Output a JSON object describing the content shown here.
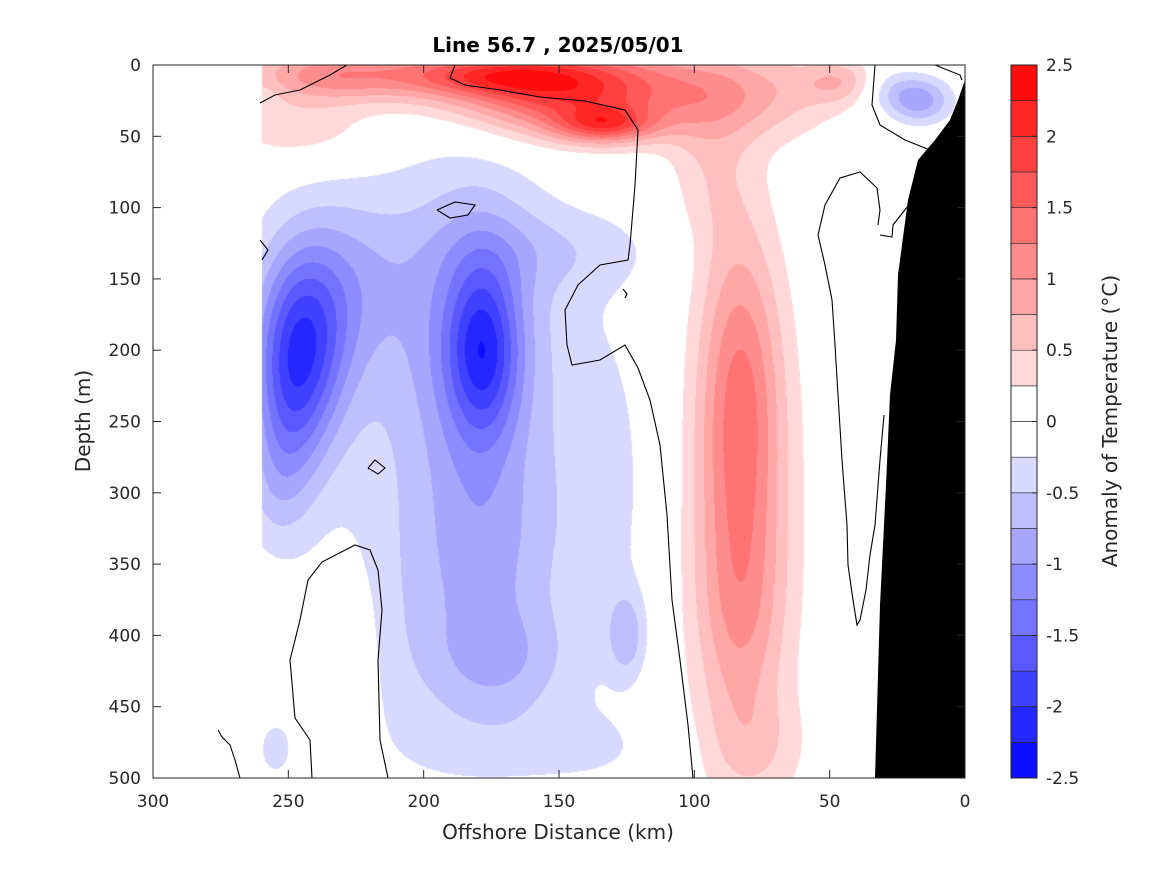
{
  "chart_data": {
    "type": "contour",
    "title": "Line 56.7 , 2025/05/01",
    "xlabel": "Offshore Distance (km)",
    "ylabel": "Depth (m)",
    "xlim": [
      0,
      300
    ],
    "x_direction": "reversed",
    "ylim": [
      0,
      500
    ],
    "y_direction": "reversed",
    "x_ticks": [
      300,
      250,
      200,
      150,
      100,
      50,
      0
    ],
    "y_ticks": [
      0,
      50,
      100,
      150,
      200,
      250,
      300,
      350,
      400,
      450,
      500
    ],
    "colorbar": {
      "label": "Anomaly of Temperature (°C)",
      "range": [
        -2.5,
        2.5
      ],
      "ticks": [
        -2.5,
        -2,
        -1.5,
        -1,
        -0.5,
        0,
        0.5,
        1,
        1.5,
        2,
        2.5
      ],
      "tick_labels": [
        "-2.5",
        "-2",
        "-1.5",
        "-1",
        "-0.5",
        "0",
        "0.5",
        "1",
        "1.5",
        "2",
        "2.5"
      ],
      "level_step": 0.25,
      "white_band": [
        -0.25,
        0.25
      ]
    },
    "data_extent_km": [
      0,
      260
    ],
    "blobs": [
      {
        "x": 200,
        "y": 5,
        "v": 0.9,
        "rx": 70,
        "ry": 22
      },
      {
        "x": 150,
        "y": 20,
        "v": 1.5,
        "rx": 40,
        "ry": 30
      },
      {
        "x": 133,
        "y": 42,
        "v": 1.2,
        "rx": 18,
        "ry": 12
      },
      {
        "x": 175,
        "y": 8,
        "v": 0.7,
        "rx": 30,
        "ry": 12
      },
      {
        "x": 245,
        "y": 45,
        "v": 0.45,
        "rx": 28,
        "ry": 25
      },
      {
        "x": 235,
        "y": 8,
        "v": 0.5,
        "rx": 25,
        "ry": 16
      },
      {
        "x": 110,
        "y": 20,
        "v": 0.55,
        "rx": 45,
        "ry": 30
      },
      {
        "x": 75,
        "y": 20,
        "v": 0.4,
        "rx": 30,
        "ry": 35
      },
      {
        "x": 45,
        "y": 12,
        "v": 0.6,
        "rx": 15,
        "ry": 15
      },
      {
        "x": 95,
        "y": 70,
        "v": 0.35,
        "rx": 15,
        "ry": 60
      },
      {
        "x": 83,
        "y": 230,
        "v": 1.0,
        "rx": 15,
        "ry": 120
      },
      {
        "x": 83,
        "y": 320,
        "v": 0.55,
        "rx": 22,
        "ry": 160
      },
      {
        "x": 83,
        "y": 390,
        "v": 0.5,
        "rx": 16,
        "ry": 80
      },
      {
        "x": 78,
        "y": 480,
        "v": 0.35,
        "rx": 20,
        "ry": 40
      },
      {
        "x": 228,
        "y": 410,
        "v": 0.35,
        "rx": 10,
        "ry": 60
      },
      {
        "x": 258,
        "y": 20,
        "v": -0.1,
        "rx": 6,
        "ry": 12
      },
      {
        "x": 17,
        "y": 25,
        "v": -0.9,
        "rx": 12,
        "ry": 16
      },
      {
        "x": 30,
        "y": 15,
        "v": -0.4,
        "rx": 12,
        "ry": 15
      },
      {
        "x": 245,
        "y": 195,
        "v": -1.5,
        "rx": 17,
        "ry": 65
      },
      {
        "x": 230,
        "y": 150,
        "v": -0.5,
        "rx": 25,
        "ry": 60
      },
      {
        "x": 250,
        "y": 250,
        "v": -0.7,
        "rx": 14,
        "ry": 60
      },
      {
        "x": 255,
        "y": 300,
        "v": -0.3,
        "rx": 12,
        "ry": 45
      },
      {
        "x": 178,
        "y": 200,
        "v": -1.2,
        "rx": 13,
        "ry": 60
      },
      {
        "x": 180,
        "y": 190,
        "v": -0.7,
        "rx": 25,
        "ry": 110
      },
      {
        "x": 175,
        "y": 340,
        "v": -0.5,
        "rx": 25,
        "ry": 80
      },
      {
        "x": 170,
        "y": 420,
        "v": -0.45,
        "rx": 25,
        "ry": 40
      },
      {
        "x": 200,
        "y": 200,
        "v": -0.4,
        "rx": 50,
        "ry": 140
      },
      {
        "x": 200,
        "y": 400,
        "v": -0.35,
        "rx": 40,
        "ry": 110
      },
      {
        "x": 133,
        "y": 300,
        "v": -0.3,
        "rx": 22,
        "ry": 140
      },
      {
        "x": 125,
        "y": 400,
        "v": -0.55,
        "rx": 7,
        "ry": 30
      },
      {
        "x": 150,
        "y": 480,
        "v": -0.25,
        "rx": 45,
        "ry": 30
      },
      {
        "x": 255,
        "y": 480,
        "v": -0.3,
        "rx": 8,
        "ry": 25
      },
      {
        "x": 150,
        "y": 130,
        "v": -0.3,
        "rx": 40,
        "ry": 30
      }
    ],
    "zero_contours": [
      [
        [
          260,
          103
        ],
        [
          275,
          95
        ],
        [
          300,
          90
        ],
        [
          330,
          75
        ],
        [
          352,
          62
        ],
        [
          370,
          54
        ],
        [
          392,
          50
        ],
        [
          415,
          45
        ],
        [
          440,
          48
        ],
        [
          455,
          65
        ],
        [
          450,
          78
        ],
        [
          465,
          85
        ],
        [
          500,
          90
        ],
        [
          540,
          97
        ],
        [
          585,
          101
        ],
        [
          625,
          110
        ],
        [
          638,
          130
        ],
        [
          635,
          185
        ],
        [
          630,
          245
        ],
        [
          628,
          260
        ],
        [
          600,
          265
        ],
        [
          578,
          285
        ],
        [
          565,
          310
        ],
        [
          567,
          345
        ],
        [
          572,
          365
        ],
        [
          600,
          360
        ],
        [
          625,
          345
        ],
        [
          638,
          368
        ],
        [
          650,
          400
        ],
        [
          660,
          445
        ],
        [
          667,
          515
        ],
        [
          672,
          600
        ],
        [
          680,
          660
        ],
        [
          688,
          725
        ],
        [
          693,
          778
        ]
      ],
      [
        [
          260,
          240
        ],
        [
          268,
          250
        ],
        [
          262,
          260
        ]
      ],
      [
        [
          437,
          210
        ],
        [
          455,
          202
        ],
        [
          475,
          205
        ],
        [
          468,
          215
        ],
        [
          450,
          218
        ],
        [
          437,
          210
        ]
      ],
      [
        [
          623,
          289
        ],
        [
          627,
          294
        ],
        [
          625,
          298
        ]
      ],
      [
        [
          368,
          468
        ],
        [
          375,
          460
        ],
        [
          385,
          468
        ],
        [
          378,
          474
        ],
        [
          368,
          468
        ]
      ],
      [
        [
          312,
          778
        ],
        [
          310,
          740
        ],
        [
          295,
          718
        ],
        [
          290,
          660
        ],
        [
          300,
          620
        ],
        [
          308,
          580
        ],
        [
          322,
          562
        ],
        [
          355,
          545
        ],
        [
          370,
          550
        ],
        [
          378,
          570
        ],
        [
          382,
          610
        ],
        [
          378,
          660
        ],
        [
          380,
          740
        ],
        [
          388,
          778
        ]
      ],
      [
        [
          240,
          778
        ],
        [
          235,
          760
        ],
        [
          230,
          745
        ],
        [
          222,
          737
        ],
        [
          218,
          730
        ]
      ],
      [
        [
          875,
          65
        ],
        [
          872,
          105
        ],
        [
          880,
          125
        ],
        [
          905,
          140
        ],
        [
          935,
          152
        ],
        [
          952,
          165
        ]
      ],
      [
        [
          910,
          65
        ],
        [
          935,
          65
        ],
        [
          960,
          75
        ],
        [
          962,
          80
        ]
      ],
      [
        [
          880,
          235
        ],
        [
          892,
          237
        ],
        [
          893,
          225
        ],
        [
          908,
          206
        ],
        [
          945,
          190
        ],
        [
          955,
          175
        ]
      ],
      [
        [
          878,
          225
        ],
        [
          880,
          210
        ],
        [
          877,
          188
        ],
        [
          860,
          172
        ],
        [
          840,
          178
        ],
        [
          825,
          205
        ],
        [
          818,
          235
        ],
        [
          825,
          265
        ],
        [
          832,
          300
        ],
        [
          835,
          345
        ],
        [
          838,
          395
        ],
        [
          842,
          460
        ],
        [
          847,
          525
        ],
        [
          848,
          565
        ],
        [
          853,
          600
        ],
        [
          857,
          625
        ],
        [
          860,
          620
        ],
        [
          866,
          590
        ],
        [
          870,
          555
        ],
        [
          875,
          525
        ],
        [
          880,
          460
        ],
        [
          884,
          415
        ]
      ]
    ],
    "land_polygon": [
      [
        875,
        778
      ],
      [
        880,
        605
      ],
      [
        886,
        485
      ],
      [
        890,
        395
      ],
      [
        896,
        340
      ],
      [
        898,
        275
      ],
      [
        908,
        200
      ],
      [
        918,
        160
      ],
      [
        935,
        140
      ],
      [
        950,
        120
      ],
      [
        958,
        100
      ],
      [
        965,
        80
      ],
      [
        965,
        65
      ],
      [
        965,
        778
      ]
    ]
  }
}
